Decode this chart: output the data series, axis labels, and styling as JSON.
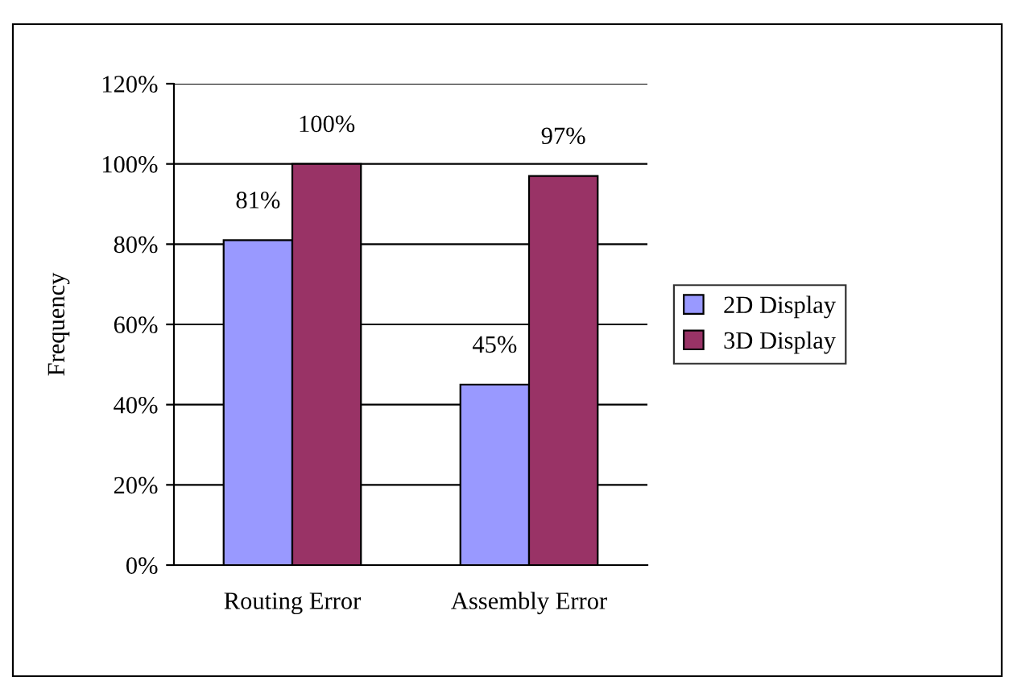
{
  "chart_data": {
    "type": "bar",
    "ylabel": "Frequency",
    "categories": [
      "Routing Error",
      "Assembly Error"
    ],
    "series": [
      {
        "name": "2D Display",
        "color": "#9999ff",
        "values": [
          81,
          45
        ],
        "value_labels": [
          "81%",
          "45%"
        ]
      },
      {
        "name": "3D Display",
        "color": "#993366",
        "values": [
          100,
          97
        ],
        "value_labels": [
          "100%",
          "97%"
        ]
      }
    ],
    "ylim": [
      0,
      120
    ],
    "yticks": [
      {
        "value": 0,
        "label": "0%"
      },
      {
        "value": 20,
        "label": "20%"
      },
      {
        "value": 40,
        "label": "40%"
      },
      {
        "value": 60,
        "label": "60%"
      },
      {
        "value": 80,
        "label": "80%"
      },
      {
        "value": 100,
        "label": "100%"
      },
      {
        "value": 120,
        "label": "120%"
      }
    ],
    "grid": "y",
    "legend": "right"
  }
}
